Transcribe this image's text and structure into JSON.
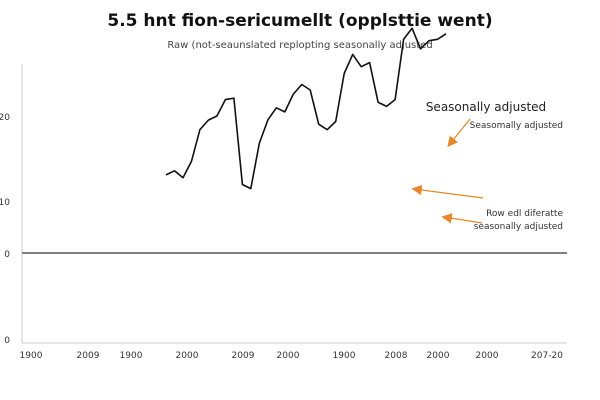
{
  "chart_data": {
    "type": "line",
    "title": "5.5 hnt fion-sericumellt (opplsttie went)",
    "subtitle": "Raw (not-seaunslated replopting seasonally adjusted",
    "xlabel": "",
    "ylabel": "",
    "y_tick_labels": [
      "20",
      "10",
      "0",
      "0"
    ],
    "x_tick_labels": [
      "1900",
      "2009",
      "1900",
      "2000",
      "2009",
      "2000",
      "1900",
      "2008",
      "2000",
      "2000",
      "207-20"
    ],
    "grid": false,
    "baseline_value": 0,
    "series": [
      {
        "name": "Seasonally adjusted",
        "color": "#111111",
        "values": [
          5.7,
          6.0,
          5.5,
          6.7,
          9.0,
          9.7,
          10.0,
          11.2,
          11.3,
          5.0,
          4.7,
          8.0,
          9.7,
          10.6,
          10.3,
          11.6,
          12.3,
          11.9,
          9.4,
          9.0,
          9.6,
          13.1,
          14.5,
          13.6,
          13.9,
          11.0,
          10.7,
          11.2,
          15.6,
          16.4,
          14.9,
          15.5,
          15.6,
          16.0
        ]
      }
    ],
    "annotations": [
      {
        "id": "legend",
        "text": "Seasonally adjusted"
      },
      {
        "id": "a1",
        "text": "Seasomally adjusted",
        "color": "#e8862c"
      },
      {
        "id": "a2",
        "text": "",
        "color": "#e8862c"
      },
      {
        "id": "a3",
        "text": "Row edl diferatte seasonally adjusted",
        "lines": [
          "Row edl diferatte",
          "seasonally adjusted"
        ],
        "color": "#e8862c"
      }
    ]
  }
}
